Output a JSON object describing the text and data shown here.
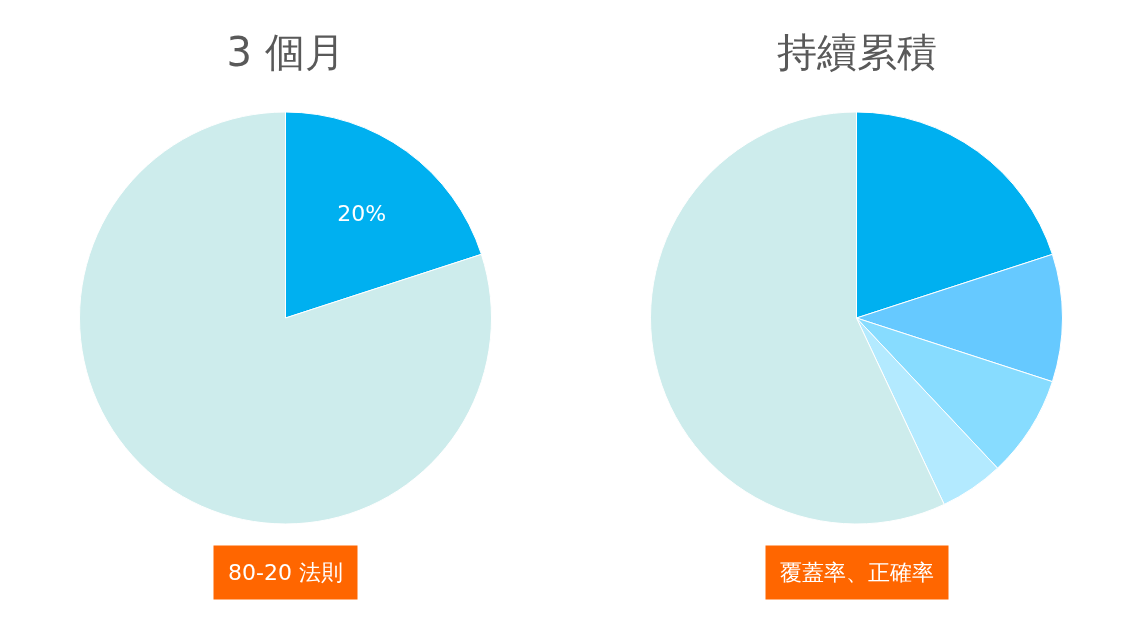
{
  "chart_data": [
    {
      "type": "pie",
      "title": "3 個月",
      "categories": [
        null,
        null
      ],
      "values": [
        20,
        80
      ],
      "colors": [
        "#00b0f0",
        "#cdecec"
      ],
      "value_labels": [
        "20%",
        null
      ],
      "annotations": [
        "80-20 法則"
      ]
    },
    {
      "type": "pie",
      "title": "持續累積",
      "categories": [
        null,
        null,
        null,
        null,
        null
      ],
      "values": [
        20,
        10,
        8,
        5,
        57
      ],
      "colors": [
        "#00b0f0",
        "#66c9ff",
        "#87dcff",
        "#b3eaff",
        "#cdecec"
      ],
      "annotations": [
        "覆蓋率、正確率"
      ]
    }
  ]
}
